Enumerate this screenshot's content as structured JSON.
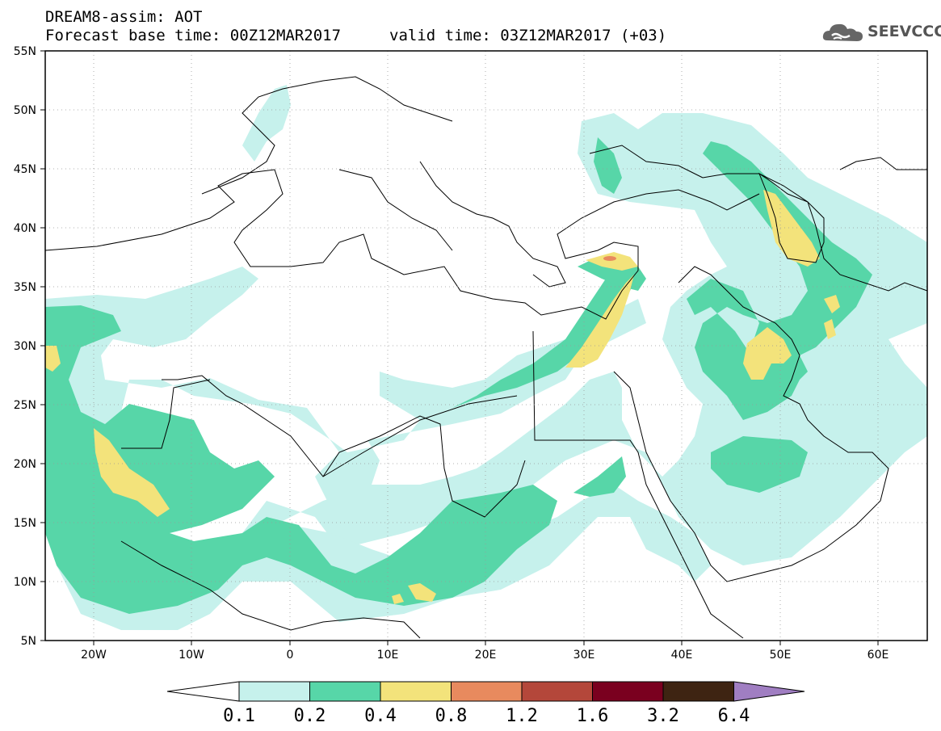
{
  "header": {
    "title_line1": "DREAM8-assim: AOT",
    "title_line2": "Forecast base time: 00Z12MAR2017",
    "valid_time": "valid time: 03Z12MAR2017 (+03)",
    "logo_text": "SEEVCCC"
  },
  "map": {
    "lat_labels": [
      "55N",
      "50N",
      "45N",
      "40N",
      "35N",
      "30N",
      "25N",
      "20N",
      "15N",
      "10N",
      "5N"
    ],
    "lon_labels": [
      "20W",
      "10W",
      "0",
      "10E",
      "20E",
      "30E",
      "40E",
      "50E",
      "60E"
    ],
    "lon_range": [
      -25,
      65
    ],
    "lat_range": [
      5,
      55
    ]
  },
  "colorbar": {
    "labels": [
      "0.1",
      "0.2",
      "0.4",
      "0.8",
      "1.2",
      "1.6",
      "3.2",
      "6.4"
    ],
    "colors": [
      "#ffffff",
      "#c6f1ec",
      "#57d6a8",
      "#f3e37b",
      "#e88a5e",
      "#b4473a",
      "#7a001f",
      "#3e2412",
      "#a07ec2"
    ]
  }
}
